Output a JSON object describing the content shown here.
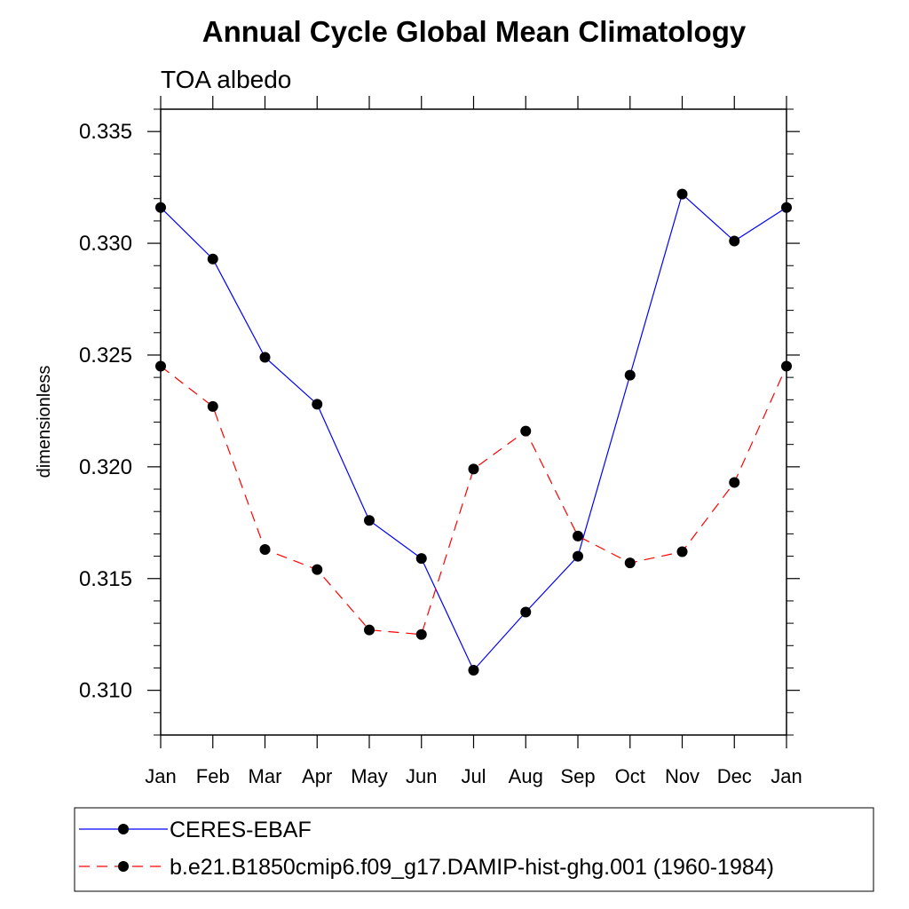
{
  "chart_data": {
    "type": "line",
    "title": "Annual Cycle Global Mean Climatology",
    "subtitle": "TOA albedo",
    "xlabel": "",
    "ylabel": "dimensionless",
    "categories": [
      "Jan",
      "Feb",
      "Mar",
      "Apr",
      "May",
      "Jun",
      "Jul",
      "Aug",
      "Sep",
      "Oct",
      "Nov",
      "Dec",
      "Jan"
    ],
    "ylim": [
      0.308,
      0.336
    ],
    "yticks": [
      0.31,
      0.315,
      0.32,
      0.325,
      0.33,
      0.335
    ],
    "ytick_labels": [
      "0.310",
      "0.315",
      "0.320",
      "0.325",
      "0.330",
      "0.335"
    ],
    "grid": false,
    "legend_position": "bottom",
    "series": [
      {
        "name": "CERES-EBAF",
        "color": "#0000ff",
        "style": "solid",
        "marker": "filled-circle",
        "values": [
          0.3316,
          0.3293,
          0.3249,
          0.3228,
          0.3176,
          0.3159,
          0.3109,
          0.3135,
          0.316,
          0.3241,
          0.3322,
          0.3301,
          0.3316
        ]
      },
      {
        "name": "b.e21.B1850cmip6.f09_g17.DAMIP-hist-ghg.001 (1960-1984)",
        "color": "#ff0000",
        "style": "dashed",
        "marker": "filled-circle",
        "values": [
          0.3245,
          0.3227,
          0.3163,
          0.3154,
          0.3127,
          0.3125,
          0.3199,
          0.3216,
          0.3169,
          0.3157,
          0.3162,
          0.3193,
          0.3245
        ]
      }
    ]
  }
}
